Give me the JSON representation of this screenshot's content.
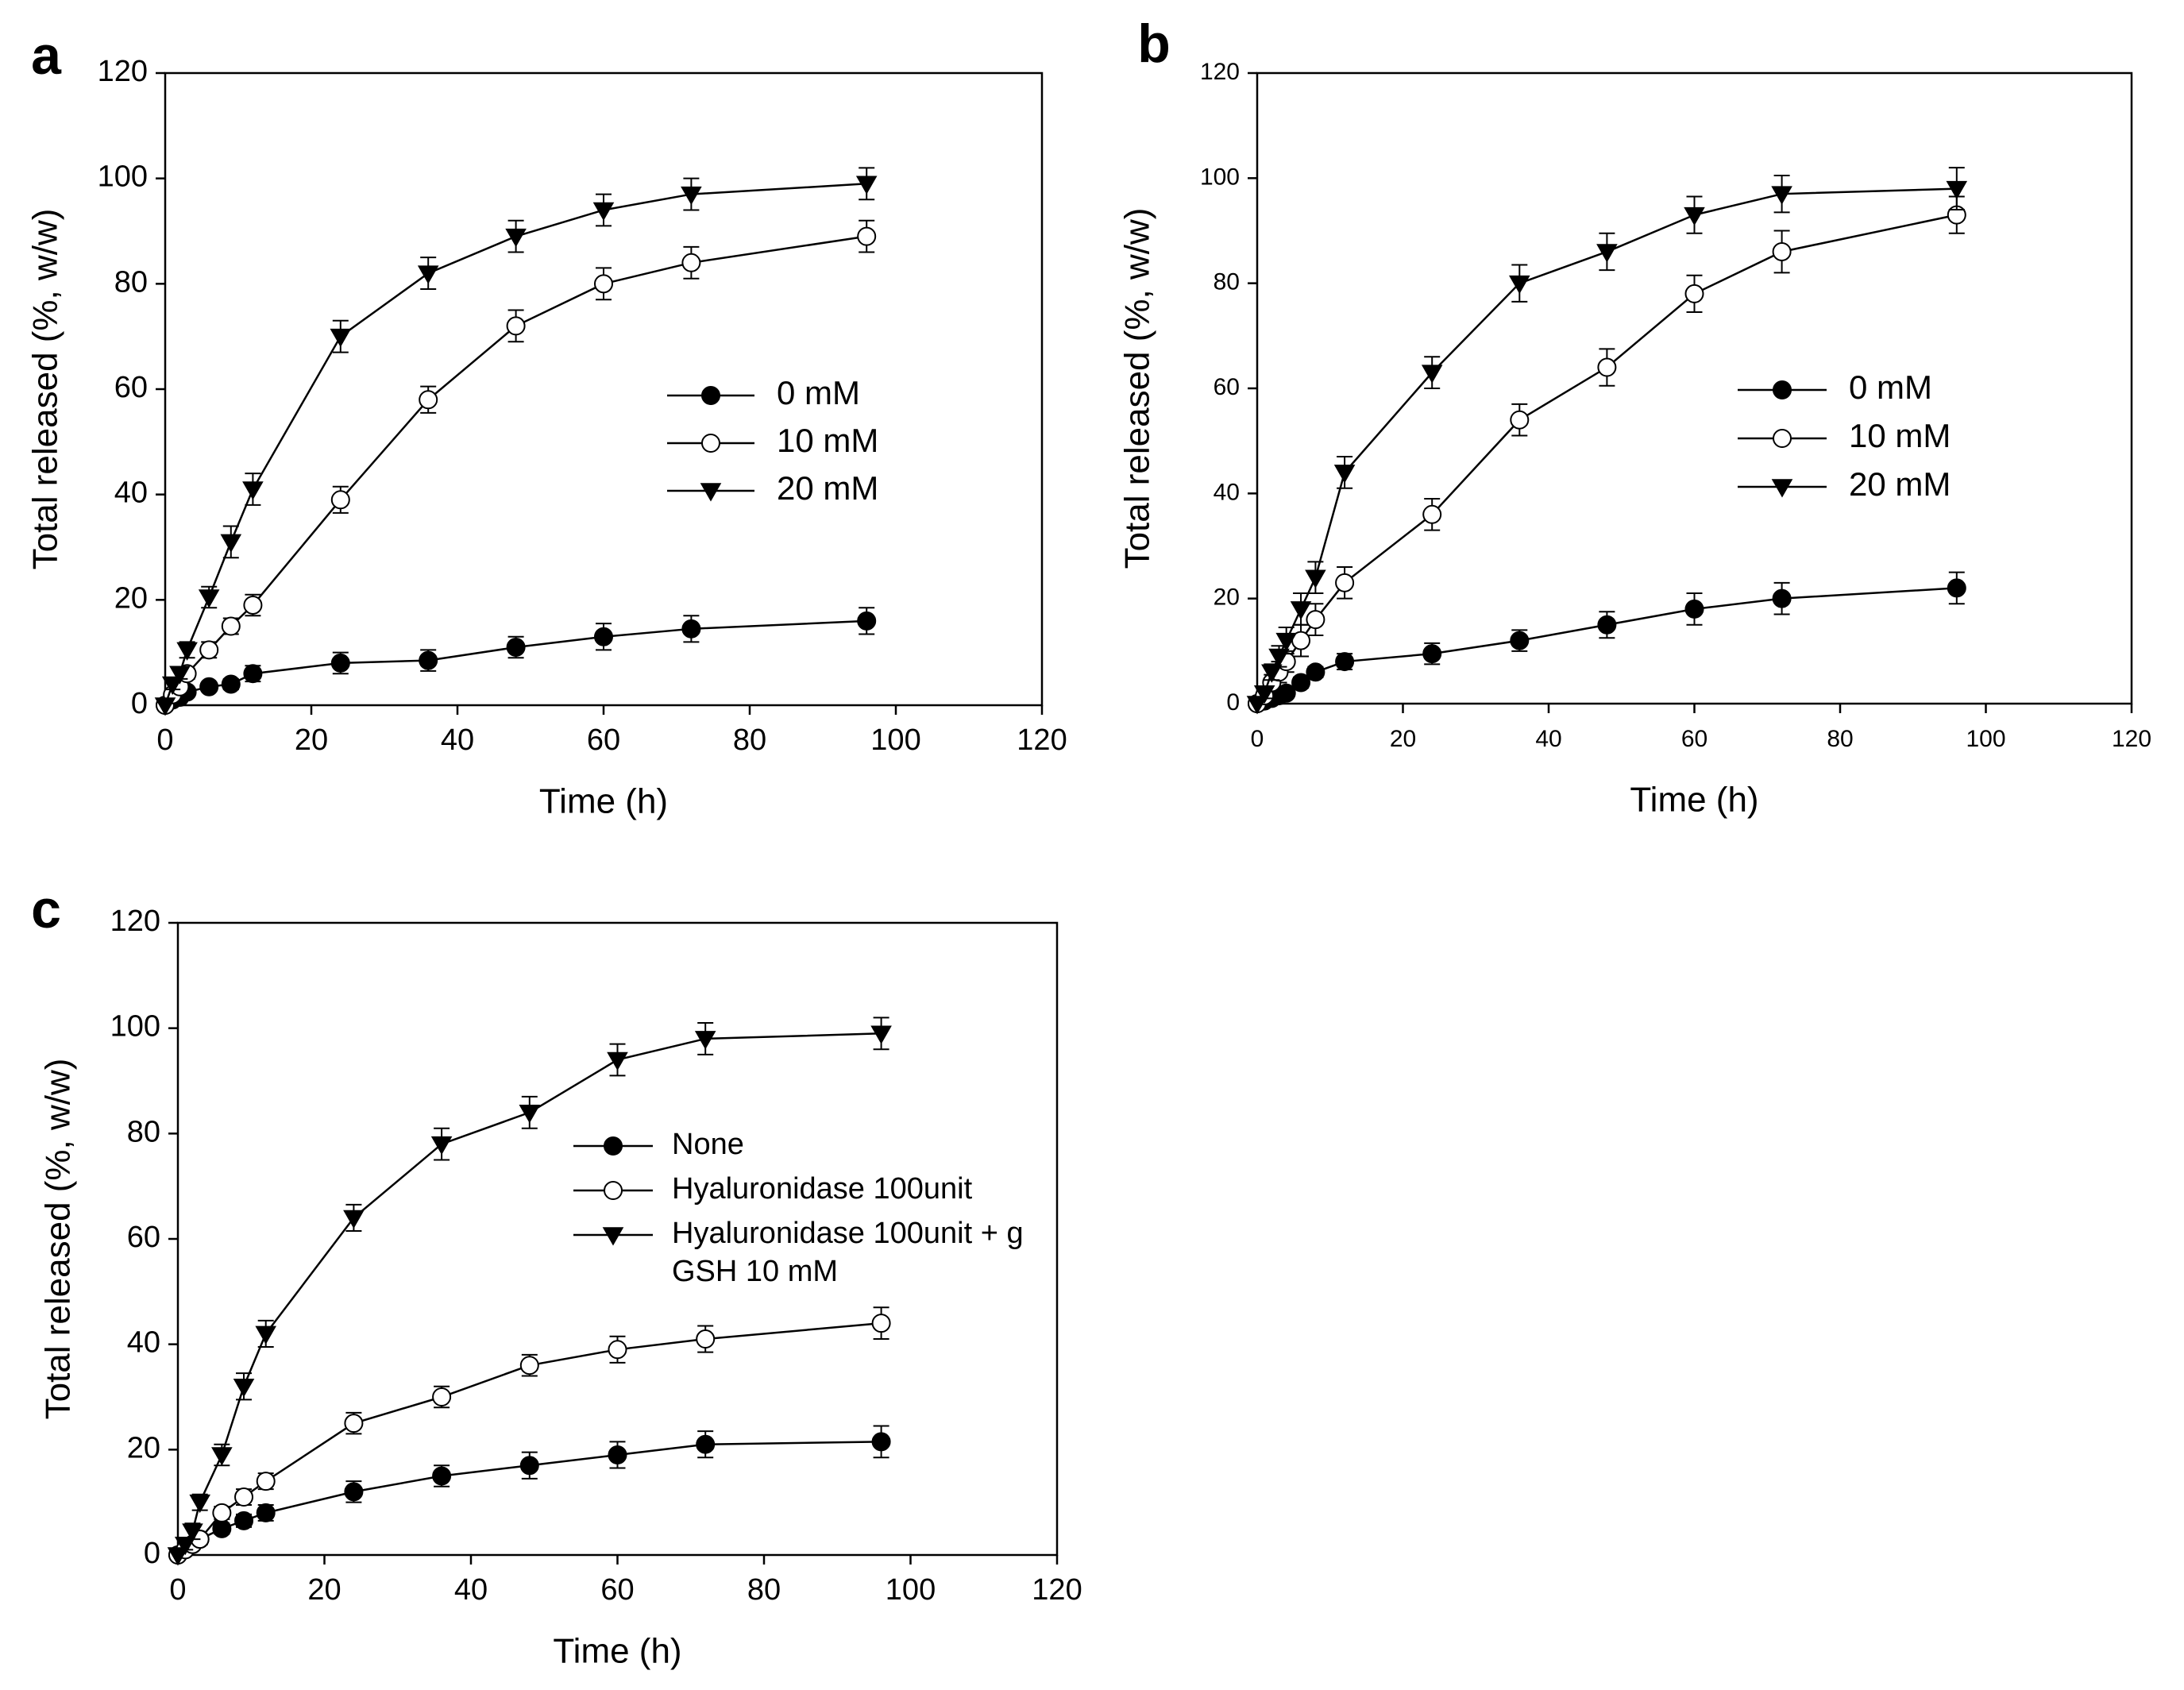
{
  "chart_data": [
    {
      "panel": "a",
      "type": "line",
      "title": "",
      "xlabel": "Time (h)",
      "ylabel": "Total released (%, w/w)",
      "xlim": [
        0,
        120
      ],
      "ylim": [
        0,
        120
      ],
      "xticks": [
        0,
        20,
        40,
        60,
        80,
        100,
        120
      ],
      "yticks": [
        0,
        20,
        40,
        60,
        80,
        100,
        120
      ],
      "grid": false,
      "legend_position": "center-right",
      "series": [
        {
          "name": "0 mM",
          "marker": "filled-circle",
          "x": [
            0,
            1,
            2,
            3,
            6,
            9,
            12,
            24,
            36,
            48,
            60,
            72,
            96
          ],
          "y": [
            0,
            1,
            1.5,
            2.5,
            3.5,
            4,
            6,
            8,
            8.5,
            11,
            13,
            14.5,
            16
          ],
          "err": [
            0,
            0.5,
            0.6,
            0.8,
            0.8,
            1,
            1.5,
            2,
            2,
            2,
            2.5,
            2.5,
            2.5
          ]
        },
        {
          "name": "10 mM",
          "marker": "open-circle",
          "x": [
            0,
            1,
            2,
            3,
            6,
            9,
            12,
            24,
            36,
            48,
            60,
            72,
            96
          ],
          "y": [
            0,
            2,
            3.5,
            6,
            10.5,
            15,
            19,
            39,
            58,
            72,
            80,
            84,
            89
          ],
          "err": [
            0,
            0.8,
            1,
            1,
            1.5,
            1.5,
            2,
            2.5,
            2.5,
            3,
            3,
            3,
            3
          ]
        },
        {
          "name": "20 mM",
          "marker": "filled-triangle-down",
          "x": [
            0,
            1,
            2,
            3,
            6,
            9,
            12,
            24,
            36,
            48,
            60,
            72,
            96
          ],
          "y": [
            0,
            4,
            6,
            10.5,
            20.5,
            31,
            41,
            70,
            82,
            89,
            94,
            97,
            99
          ],
          "err": [
            0,
            1,
            1,
            1.5,
            2,
            3,
            3,
            3,
            3,
            3,
            3,
            3,
            3
          ]
        }
      ]
    },
    {
      "panel": "b",
      "type": "line",
      "title": "",
      "xlabel": "Time (h)",
      "ylabel": "Total released (%, w/w)",
      "xlim": [
        0,
        120
      ],
      "ylim": [
        0,
        120
      ],
      "xticks": [
        0,
        20,
        40,
        60,
        80,
        100,
        120
      ],
      "yticks": [
        0,
        20,
        40,
        60,
        80,
        100,
        120
      ],
      "grid": false,
      "legend_position": "center-right",
      "series": [
        {
          "name": "0 mM",
          "marker": "filled-circle",
          "x": [
            0,
            1,
            2,
            3,
            4,
            6,
            8,
            12,
            24,
            36,
            48,
            60,
            72,
            96
          ],
          "y": [
            0,
            0.5,
            1,
            1.5,
            2,
            4,
            6,
            8,
            9.5,
            12,
            15,
            18,
            20,
            22
          ],
          "err": [
            0,
            0.5,
            0.5,
            0.5,
            0.8,
            1,
            1,
            1.5,
            2,
            2,
            2.5,
            3,
            3,
            3
          ]
        },
        {
          "name": "10 mM",
          "marker": "open-circle",
          "x": [
            0,
            1,
            2,
            3,
            4,
            6,
            8,
            12,
            24,
            36,
            48,
            60,
            72,
            96
          ],
          "y": [
            0,
            1.5,
            4,
            6,
            8,
            12,
            16,
            23,
            36,
            54,
            64,
            78,
            86,
            93
          ],
          "err": [
            0,
            1,
            1.5,
            2,
            2,
            3,
            3,
            3,
            3,
            3,
            3.5,
            3.5,
            4,
            3.5
          ]
        },
        {
          "name": "20 mM",
          "marker": "filled-triangle-down",
          "x": [
            0,
            1,
            2,
            3,
            4,
            6,
            8,
            12,
            24,
            36,
            48,
            60,
            72,
            96
          ],
          "y": [
            0,
            2,
            6,
            9,
            12,
            18,
            24,
            44,
            63,
            80,
            86,
            93,
            97,
            98
          ],
          "err": [
            0,
            1,
            1.5,
            2,
            2.5,
            3,
            3,
            3,
            3,
            3.5,
            3.5,
            3.5,
            3.5,
            4
          ]
        }
      ]
    },
    {
      "panel": "c",
      "type": "line",
      "title": "",
      "xlabel": "Time (h)",
      "ylabel": "Total released (%, w/w)",
      "xlim": [
        0,
        120
      ],
      "ylim": [
        0,
        120
      ],
      "xticks": [
        0,
        20,
        40,
        60,
        80,
        100,
        120
      ],
      "yticks": [
        0,
        20,
        40,
        60,
        80,
        100,
        120
      ],
      "grid": false,
      "legend_position": "center-right",
      "series": [
        {
          "name": "None",
          "marker": "filled-circle",
          "x": [
            0,
            1,
            2,
            3,
            6,
            9,
            12,
            24,
            36,
            48,
            60,
            72,
            96
          ],
          "y": [
            0,
            1,
            2,
            3,
            5,
            6.5,
            8,
            12,
            15,
            17,
            19,
            21,
            21.5
          ],
          "err": [
            0,
            0.5,
            0.5,
            0.8,
            1,
            1.2,
            1.5,
            2,
            2,
            2.5,
            2.5,
            2.5,
            3
          ]
        },
        {
          "name": "Hyaluronidase 100unit",
          "marker": "open-circle",
          "x": [
            0,
            1,
            2,
            3,
            6,
            9,
            12,
            24,
            36,
            48,
            60,
            72,
            96
          ],
          "y": [
            0,
            1,
            2,
            3,
            8,
            11,
            14,
            25,
            30,
            36,
            39,
            41,
            44
          ],
          "err": [
            0,
            0.5,
            0.8,
            1,
            1.2,
            1.5,
            1.5,
            2,
            2,
            2,
            2.5,
            2.5,
            3
          ]
        },
        {
          "name": "Hyaluronidase 100unit + GSH 10 mM",
          "marker": "filled-triangle-down",
          "x": [
            0,
            1,
            2,
            3,
            6,
            9,
            12,
            24,
            36,
            48,
            60,
            72,
            96
          ],
          "y": [
            0,
            2,
            4.5,
            10,
            19,
            32,
            42,
            64,
            78,
            84,
            94,
            98,
            99
          ],
          "err": [
            0,
            1,
            1.5,
            1.5,
            2,
            2.5,
            2.5,
            2.5,
            3,
            3,
            3,
            3,
            3
          ]
        }
      ]
    }
  ],
  "panel_labels": [
    "a",
    "b",
    "c"
  ],
  "legend_c_lines": [
    "None",
    "Hyaluronidase 100unit",
    "Hyaluronidase 100unit + g",
    "GSH 10 mM"
  ]
}
